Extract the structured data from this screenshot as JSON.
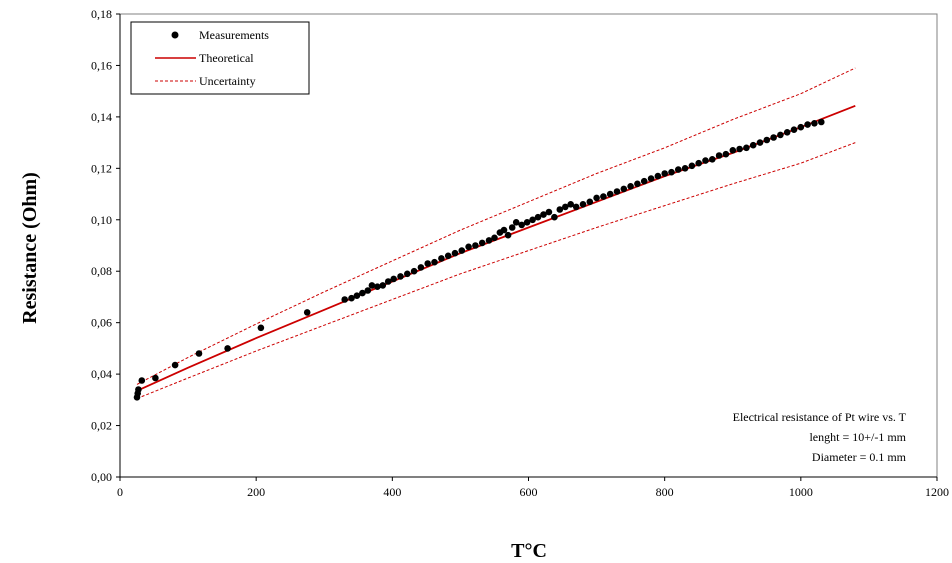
{
  "chart_data": {
    "type": "scatter",
    "xlabel": "T°C",
    "ylabel": "Resistance (Ohm)",
    "xlim": [
      0,
      1200
    ],
    "ylim": [
      0,
      0.18
    ],
    "xticks": [
      0,
      200,
      400,
      600,
      800,
      1000,
      1200
    ],
    "xtick_labels": [
      "0",
      "200",
      "400",
      "600",
      "800",
      "1000",
      "1200"
    ],
    "yticks": [
      0,
      0.02,
      0.04,
      0.06,
      0.08,
      0.1,
      0.12,
      0.14,
      0.16,
      0.18
    ],
    "ytick_labels": [
      "0,00",
      "0,02",
      "0,04",
      "0,06",
      "0,08",
      "0,10",
      "0,12",
      "0,14",
      "0,16",
      "0,18"
    ],
    "grid": false,
    "legend_position": "top-left",
    "annotation": [
      "Electrical resistance of Pt wire vs. T",
      "lenght = 10+/-1 mm",
      "Diameter = 0.1 mm"
    ],
    "colors": {
      "measurements": "#000000",
      "theoretical": "#cc0000",
      "uncertainty": "#cc0000"
    },
    "series": [
      {
        "name": "Measurements",
        "style": "markers",
        "points": [
          [
            25,
            0.031
          ],
          [
            26,
            0.0325
          ],
          [
            27,
            0.034
          ],
          [
            32,
            0.0375
          ],
          [
            52,
            0.0385
          ],
          [
            81,
            0.0435
          ],
          [
            116,
            0.048
          ],
          [
            158,
            0.05
          ],
          [
            207,
            0.058
          ],
          [
            275,
            0.064
          ],
          [
            330,
            0.069
          ],
          [
            340,
            0.0695
          ],
          [
            348,
            0.0705
          ],
          [
            356,
            0.0715
          ],
          [
            364,
            0.0725
          ],
          [
            370,
            0.0745
          ],
          [
            378,
            0.074
          ],
          [
            386,
            0.0745
          ],
          [
            394,
            0.076
          ],
          [
            402,
            0.077
          ],
          [
            412,
            0.078
          ],
          [
            422,
            0.079
          ],
          [
            432,
            0.08
          ],
          [
            442,
            0.0815
          ],
          [
            452,
            0.083
          ],
          [
            462,
            0.0835
          ],
          [
            472,
            0.085
          ],
          [
            482,
            0.086
          ],
          [
            492,
            0.087
          ],
          [
            502,
            0.088
          ],
          [
            512,
            0.0895
          ],
          [
            522,
            0.09
          ],
          [
            532,
            0.091
          ],
          [
            542,
            0.092
          ],
          [
            550,
            0.093
          ],
          [
            558,
            0.095
          ],
          [
            564,
            0.096
          ],
          [
            570,
            0.094
          ],
          [
            576,
            0.097
          ],
          [
            582,
            0.099
          ],
          [
            590,
            0.098
          ],
          [
            598,
            0.099
          ],
          [
            606,
            0.1
          ],
          [
            614,
            0.101
          ],
          [
            622,
            0.102
          ],
          [
            630,
            0.103
          ],
          [
            638,
            0.101
          ],
          [
            646,
            0.104
          ],
          [
            654,
            0.105
          ],
          [
            662,
            0.106
          ],
          [
            670,
            0.105
          ],
          [
            680,
            0.106
          ],
          [
            690,
            0.107
          ],
          [
            700,
            0.1085
          ],
          [
            710,
            0.109
          ],
          [
            720,
            0.11
          ],
          [
            730,
            0.111
          ],
          [
            740,
            0.112
          ],
          [
            750,
            0.113
          ],
          [
            760,
            0.114
          ],
          [
            770,
            0.115
          ],
          [
            780,
            0.116
          ],
          [
            790,
            0.117
          ],
          [
            800,
            0.118
          ],
          [
            810,
            0.1185
          ],
          [
            820,
            0.1195
          ],
          [
            830,
            0.12
          ],
          [
            840,
            0.121
          ],
          [
            850,
            0.122
          ],
          [
            860,
            0.123
          ],
          [
            870,
            0.1235
          ],
          [
            880,
            0.125
          ],
          [
            890,
            0.1255
          ],
          [
            900,
            0.127
          ],
          [
            910,
            0.1275
          ],
          [
            920,
            0.128
          ],
          [
            930,
            0.129
          ],
          [
            940,
            0.13
          ],
          [
            950,
            0.131
          ],
          [
            960,
            0.132
          ],
          [
            970,
            0.133
          ],
          [
            980,
            0.134
          ],
          [
            990,
            0.135
          ],
          [
            1000,
            0.136
          ],
          [
            1010,
            0.137
          ],
          [
            1020,
            0.1375
          ],
          [
            1030,
            0.138
          ]
        ]
      },
      {
        "name": "Theoretical",
        "style": "solid-line",
        "points": [
          [
            25,
            0.0335
          ],
          [
            100,
            0.0425
          ],
          [
            200,
            0.054
          ],
          [
            300,
            0.065
          ],
          [
            400,
            0.076
          ],
          [
            500,
            0.087
          ],
          [
            600,
            0.097
          ],
          [
            700,
            0.107
          ],
          [
            800,
            0.117
          ],
          [
            900,
            0.126
          ],
          [
            1000,
            0.136
          ],
          [
            1080,
            0.1443
          ]
        ]
      },
      {
        "name": "Uncertainty",
        "style": "dashed-line",
        "points": [
          [
            25,
            0.036
          ],
          [
            100,
            0.0465
          ],
          [
            200,
            0.0595
          ],
          [
            300,
            0.072
          ],
          [
            400,
            0.084
          ],
          [
            500,
            0.096
          ],
          [
            600,
            0.107
          ],
          [
            700,
            0.118
          ],
          [
            800,
            0.128
          ],
          [
            900,
            0.139
          ],
          [
            1000,
            0.149
          ],
          [
            1080,
            0.159
          ]
        ]
      },
      {
        "name": "Uncertainty (lower)",
        "style": "dashed-line",
        "points": [
          [
            25,
            0.0305
          ],
          [
            100,
            0.0385
          ],
          [
            200,
            0.049
          ],
          [
            300,
            0.059
          ],
          [
            400,
            0.069
          ],
          [
            500,
            0.079
          ],
          [
            600,
            0.088
          ],
          [
            700,
            0.097
          ],
          [
            800,
            0.1055
          ],
          [
            900,
            0.114
          ],
          [
            1000,
            0.122
          ],
          [
            1080,
            0.13
          ]
        ]
      }
    ]
  }
}
